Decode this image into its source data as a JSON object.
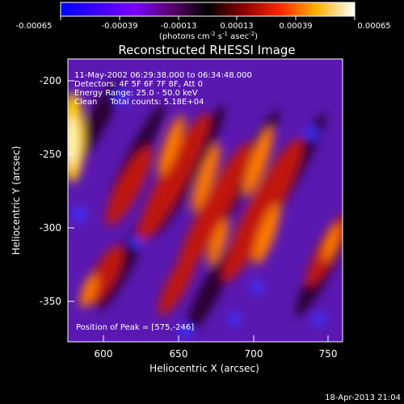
{
  "colorbar": {
    "ticks": [
      "-0.00065",
      "-0.00039",
      "-0.00013",
      "0.00013",
      "0.00039",
      "0.00065"
    ],
    "units_prefix": "(photons cm",
    "units_exp1": "-2",
    "units_mid": " s",
    "units_exp2": "-1",
    "units_mid2": " asec",
    "units_exp3": "-2",
    "units_suffix": ")"
  },
  "plot": {
    "title": "Reconstructed RHESSI Image",
    "xlabel": "Heliocentric X (arcsec)",
    "ylabel": "Heliocentric Y (arcsec)",
    "x_ticks": [
      "600",
      "650",
      "700",
      "750"
    ],
    "y_ticks": [
      "-200",
      "-250",
      "-300",
      "-350"
    ],
    "annotations": [
      "11-May-2002 06:29:38.000 to 06:34:48.000",
      "Detectors: 4F 5F 6F 7F 8F, Att 0",
      "Energy Range: 25.0 - 50.0 keV",
      "Clean     Total counts: 5.18E+04"
    ],
    "peak_text": "Position of Peak = [575,-246]",
    "timestamp": "18-Apr-2013 21:04"
  }
}
